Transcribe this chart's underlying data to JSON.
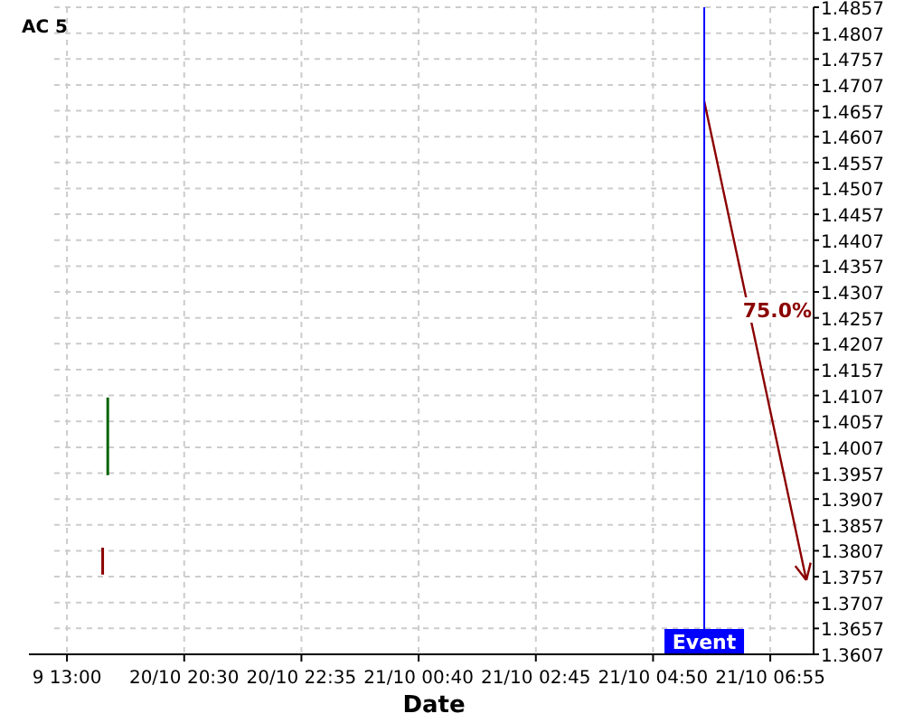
{
  "chart_data": {
    "type": "bar",
    "title": "AC 5",
    "xlabel": "Date",
    "categories": [
      null,
      null,
      "9 13:00",
      null,
      null,
      null,
      null,
      null,
      null,
      null,
      null,
      null,
      null,
      null,
      null,
      null,
      null,
      null,
      null,
      null,
      null,
      null,
      null,
      null,
      null,
      "20/10 20:30",
      null,
      null,
      null,
      null,
      null,
      null,
      null,
      null,
      null,
      null,
      null,
      null,
      null,
      null,
      null,
      null,
      null,
      null,
      null,
      null,
      null,
      null,
      "20/10 22:35",
      null,
      null,
      null,
      null,
      null,
      null,
      null,
      null,
      null,
      null,
      null,
      null,
      null,
      null,
      null,
      null,
      null,
      null,
      null,
      null,
      null,
      null,
      "21/10 00:40",
      null,
      null,
      null,
      null,
      null,
      null,
      null,
      null,
      null,
      null,
      null,
      null,
      null,
      null,
      null,
      null,
      null,
      null,
      null,
      null,
      null,
      null,
      "21/10 02:45",
      null,
      null,
      null,
      null,
      null,
      null,
      null,
      null,
      null,
      null,
      null,
      null,
      null,
      null,
      null,
      null,
      null,
      null,
      null,
      null,
      null,
      null,
      "21/10 04:50",
      null,
      null,
      null,
      null,
      null,
      null,
      null,
      null,
      null,
      null,
      null,
      null,
      null,
      null,
      null,
      null,
      null,
      null,
      null,
      null,
      null,
      null,
      "21/10 06:55",
      null,
      null,
      null,
      null,
      null,
      null,
      null,
      null
    ],
    "base": [
      null,
      null,
      null,
      null,
      null,
      null,
      null,
      null,
      null,
      1.3761,
      1.3953,
      null,
      null,
      null,
      null,
      null,
      null,
      null,
      null,
      null,
      null,
      null,
      null,
      null,
      null,
      null,
      null,
      null,
      null,
      null,
      null,
      null,
      null,
      null,
      null,
      null,
      null,
      null,
      null,
      null,
      null,
      null,
      null,
      null,
      null,
      null,
      null,
      null,
      null,
      null,
      null,
      null,
      null,
      null,
      null,
      null,
      null,
      null,
      null,
      null,
      null,
      null,
      null,
      null,
      null,
      null,
      null,
      null,
      null,
      null,
      null,
      null,
      null,
      null,
      null,
      null,
      null,
      null,
      null,
      null,
      null,
      null,
      null,
      null,
      null,
      null,
      null,
      null,
      null,
      null,
      null,
      null,
      null,
      null,
      null,
      null,
      null,
      null,
      null,
      null,
      null,
      null,
      null,
      null,
      null,
      null,
      null,
      null,
      null,
      null,
      null,
      null,
      null,
      null,
      null,
      null,
      null,
      null,
      null,
      null,
      null,
      null,
      null,
      null,
      null,
      null,
      null,
      null,
      null,
      null,
      null,
      null,
      null,
      null,
      null,
      null,
      null,
      null,
      null,
      null,
      null,
      null,
      null,
      null,
      null,
      null,
      null,
      null,
      null
    ],
    "values": [
      null,
      null,
      null,
      null,
      null,
      null,
      null,
      null,
      null,
      0.0052,
      0.015,
      null,
      null,
      null,
      null,
      null,
      null,
      null,
      null,
      null,
      null,
      null,
      null,
      null,
      null,
      null,
      null,
      null,
      null,
      null,
      null,
      null,
      null,
      null,
      null,
      null,
      null,
      null,
      null,
      null,
      null,
      null,
      null,
      null,
      null,
      null,
      null,
      null,
      null,
      null,
      null,
      null,
      null,
      null,
      null,
      null,
      null,
      null,
      null,
      null,
      null,
      null,
      null,
      null,
      null,
      null,
      null,
      null,
      null,
      null,
      null,
      null,
      null,
      null,
      null,
      null,
      null,
      null,
      null,
      null,
      null,
      null,
      null,
      null,
      null,
      null,
      null,
      null,
      null,
      null,
      null,
      null,
      null,
      null,
      null,
      null,
      null,
      null,
      null,
      null,
      null,
      null,
      null,
      null,
      null,
      null,
      null,
      null,
      null,
      null,
      null,
      null,
      null,
      null,
      null,
      null,
      null,
      null,
      null,
      null,
      null,
      null,
      null,
      null,
      null,
      null,
      null,
      null,
      null,
      null,
      null,
      null,
      null,
      null,
      null,
      null,
      null,
      null,
      null,
      null,
      null,
      null,
      null,
      null,
      null,
      null,
      null,
      null,
      null
    ],
    "colors": [
      null,
      null,
      null,
      null,
      null,
      null,
      null,
      null,
      null,
      "#8b0000",
      "#006400",
      null,
      null,
      null,
      null,
      null,
      null,
      null,
      null,
      null,
      null,
      null,
      null,
      null,
      null,
      null,
      null,
      null,
      null,
      null,
      null,
      null,
      null,
      null,
      null,
      null,
      null,
      null,
      null,
      null,
      null,
      null,
      null,
      null,
      null,
      null,
      null,
      null,
      null,
      null,
      null,
      null,
      null,
      null,
      null,
      null,
      null,
      null,
      null,
      null,
      null,
      null,
      null,
      null,
      null,
      null,
      null,
      null,
      null,
      null,
      null,
      null,
      null,
      null,
      null,
      null,
      null,
      null,
      null,
      null,
      null,
      null,
      null,
      null,
      null,
      null,
      null,
      null,
      null,
      null,
      null,
      null,
      null,
      null,
      null,
      null,
      null,
      null,
      null,
      null,
      null,
      null,
      null,
      null,
      null,
      null,
      null,
      null,
      null,
      null,
      null,
      null,
      null,
      null,
      null,
      null,
      null,
      null,
      null,
      null,
      null,
      null,
      null,
      null,
      null,
      null,
      null,
      null,
      null,
      null,
      null,
      null,
      null,
      null,
      null,
      null,
      null,
      null,
      null,
      null,
      null,
      null,
      null,
      null,
      null,
      null,
      null,
      null,
      null
    ],
    "ylim": [
      1.3607,
      1.4857
    ],
    "yticks": [
      1.3607,
      1.3657,
      1.3707,
      1.3757,
      1.3807,
      1.3857,
      1.3907,
      1.3957,
      1.4007,
      1.4057,
      1.4107,
      1.4157,
      1.4207,
      1.4257,
      1.4307,
      1.4357,
      1.4407,
      1.4457,
      1.4507,
      1.4557,
      1.4607,
      1.4657,
      1.4707,
      1.4757,
      1.4807,
      1.4857
    ],
    "grid": true,
    "annotations": [
      "75.0%",
      "Event"
    ]
  }
}
